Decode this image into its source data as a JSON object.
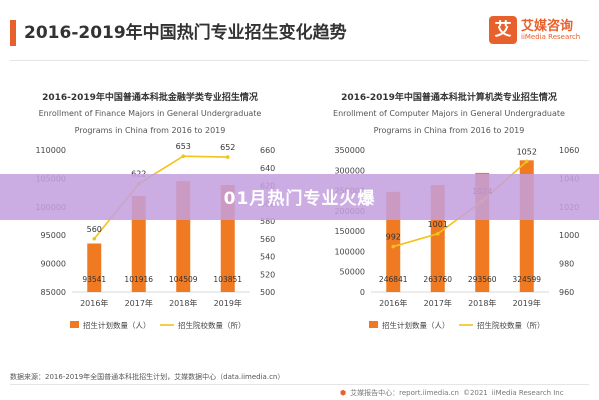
{
  "header": {
    "title": "2016-2019年中国热门专业招生变化趋势"
  },
  "logo": {
    "mark": "艾",
    "name_cn": "艾媒咨询",
    "name_en": "iiMedia Research"
  },
  "banner": {
    "text": "01月热门专业火爆"
  },
  "colors": {
    "bar": "#f07a22",
    "line": "#f2c318",
    "accent": "#e8602c",
    "banner": "#c4a0de"
  },
  "chart_data": [
    {
      "type": "bar",
      "title": "2016-2019年中国普通本科批金融学类专业招生情况",
      "subtitle": "Enrollment of Finance Majors in General Undergraduate Programs in China from 2016 to 2019",
      "categories": [
        "2016年",
        "2017年",
        "2018年",
        "2019年"
      ],
      "series": [
        {
          "name": "招生计划数量（人）",
          "type": "bar",
          "axis": "left",
          "values": [
            93541,
            101916,
            104509,
            103851
          ]
        },
        {
          "name": "招生院校数量（所）",
          "type": "line",
          "axis": "right",
          "values": [
            560,
            622,
            653,
            652
          ]
        }
      ],
      "y_left": {
        "min": 85000,
        "max": 110000,
        "ticks": [
          "85000",
          "90000",
          "95000",
          "100000",
          "105000",
          "110000"
        ]
      },
      "y_right": {
        "min": 500,
        "max": 660,
        "ticks": [
          "500",
          "520",
          "540",
          "560",
          "580",
          "600",
          "620",
          "640",
          "660"
        ]
      },
      "legend_position": "bottom"
    },
    {
      "type": "bar",
      "title": "2016-2019年中国普通本科批计算机类专业招生情况",
      "subtitle": "Enrollment of Computer Majors in General Undergraduate Programs in China from 2016 to 2019",
      "categories": [
        "2016年",
        "2017年",
        "2018年",
        "2019年"
      ],
      "series": [
        {
          "name": "招生计划数量（人）",
          "type": "bar",
          "axis": "left",
          "values": [
            246841,
            263760,
            293560,
            324599
          ]
        },
        {
          "name": "招生院校数量（所）",
          "type": "line",
          "axis": "right",
          "values": [
            992,
            1001,
            1024,
            1052
          ]
        }
      ],
      "y_left": {
        "min": 0,
        "max": 350000,
        "ticks": [
          "0",
          "50000",
          "100000",
          "150000",
          "200000",
          "250000",
          "300000",
          "350000"
        ]
      },
      "y_right": {
        "min": 960,
        "max": 1060,
        "ticks": [
          "960",
          "980",
          "1000",
          "1020",
          "1040",
          "1060"
        ]
      },
      "legend_position": "bottom"
    }
  ],
  "source": "数据来源：2016-2019年全国普通本科批招生计划，艾媒数据中心（data.iimedia.cn）",
  "footer": {
    "brand": "艾媒报告中心：report.iimedia.cn",
    "copyright": "©2021",
    "company": "iiMedia Research Inc"
  }
}
